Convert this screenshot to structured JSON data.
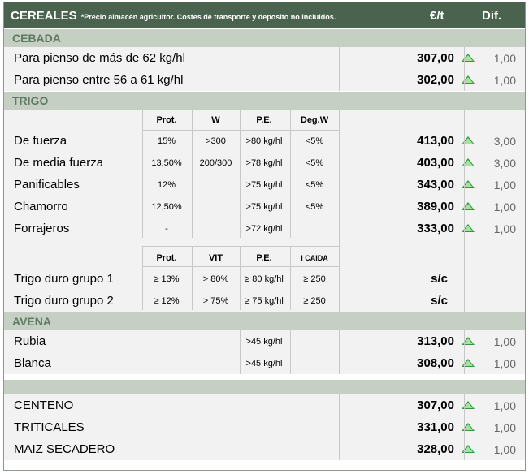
{
  "header": {
    "title": "CEREALES",
    "note": "*Precio almacén agricultor. Costes de transporte y deposito no incluidos.",
    "price_col": "€/t",
    "diff_col": "Dif."
  },
  "cebada": {
    "title": "CEBADA",
    "rows": [
      {
        "label": "Para pienso de más de 62 kg/hl",
        "price": "307,00",
        "diff": "1,00"
      },
      {
        "label": "Para pienso entre 56 a 61 kg/hl",
        "price": "302,00",
        "diff": "1,00"
      }
    ]
  },
  "trigo": {
    "title": "TRIGO",
    "headers": [
      "Prot.",
      "W",
      "P.E.",
      "Deg.W"
    ],
    "rows": [
      {
        "label": "De fuerza",
        "prot": "15%",
        "w": ">300",
        "pe": ">80 kg/hl",
        "deg": "<5%",
        "price": "413,00",
        "diff": "3,00"
      },
      {
        "label": "De media fuerza",
        "prot": "13,50%",
        "w": "200/300",
        "pe": ">78 kg/hl",
        "deg": "<5%",
        "price": "403,00",
        "diff": "3,00"
      },
      {
        "label": "Panificables",
        "prot": "12%",
        "w": "",
        "pe": ">75 kg/hl",
        "deg": "<5%",
        "price": "343,00",
        "diff": "1,00"
      },
      {
        "label": "Chamorro",
        "prot": "12,50%",
        "w": "",
        "pe": ">75 kg/hl",
        "deg": "<5%",
        "price": "389,00",
        "diff": "1,00"
      },
      {
        "label": "Forrajeros",
        "prot": "-",
        "w": "",
        "pe": ">72 kg/hl",
        "deg": "",
        "price": "333,00",
        "diff": "1,00"
      }
    ],
    "duro_headers": [
      "Prot.",
      "VIT",
      "P.E.",
      "I CAIDA"
    ],
    "duro_rows": [
      {
        "label": "Trigo duro grupo 1",
        "prot": "≥ 13%",
        "vit": "> 80%",
        "pe": "≥ 80 kg/hl",
        "caida": "≥ 250",
        "price": "s/c"
      },
      {
        "label": "Trigo duro grupo 2",
        "prot": "≥ 12%",
        "vit": "> 75%",
        "pe": "≥ 75 kg/hl",
        "caida": "≥ 250",
        "price": "s/c"
      }
    ]
  },
  "avena": {
    "title": "AVENA",
    "rows": [
      {
        "label": "Rubia",
        "pe": ">45 kg/hl",
        "price": "313,00",
        "diff": "1,00"
      },
      {
        "label": "Blanca",
        "pe": ">45 kg/hl",
        "price": "308,00",
        "diff": "1,00"
      }
    ]
  },
  "otros": {
    "rows": [
      {
        "label": "CENTENO",
        "price": "307,00",
        "diff": "1,00"
      },
      {
        "label": "TRITICALES",
        "price": "331,00",
        "diff": "1,00"
      },
      {
        "label": "MAIZ SECADERO",
        "price": "328,00",
        "diff": "1,00"
      }
    ]
  },
  "icons": {
    "up": "triangle-up-icon",
    "up_color": "#2e9a3e"
  }
}
